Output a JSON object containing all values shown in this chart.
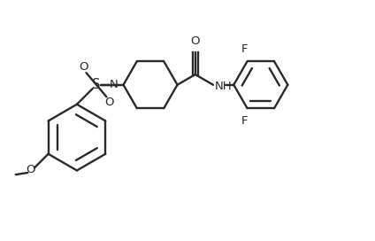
{
  "bg_color": "#ffffff",
  "line_color": "#2a2a2a",
  "line_width": 1.7,
  "font_size": 9.5,
  "figsize": [
    4.24,
    2.72
  ],
  "dpi": 100,
  "xlim": [
    0,
    10
  ],
  "ylim": [
    0,
    6.4
  ]
}
